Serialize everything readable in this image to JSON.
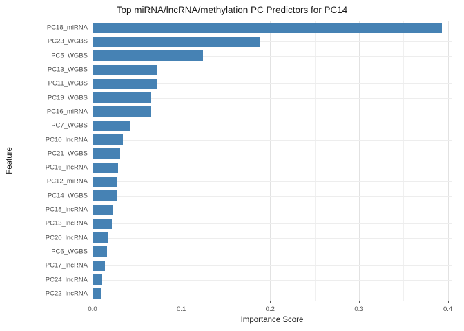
{
  "chart_data": {
    "type": "bar",
    "orientation": "horizontal",
    "title": "Top miRNA/lncRNA/methylation PC Predictors for PC14",
    "xlabel": "Importance Score",
    "ylabel": "Feature",
    "categories": [
      "PC18_miRNA",
      "PC23_WGBS",
      "PC5_WGBS",
      "PC13_WGBS",
      "PC11_WGBS",
      "PC19_WGBS",
      "PC16_miRNA",
      "PC7_WGBS",
      "PC10_lncRNA",
      "PC21_WGBS",
      "PC16_lncRNA",
      "PC12_miRNA",
      "PC14_WGBS",
      "PC18_lncRNA",
      "PC13_lncRNA",
      "PC20_lncRNA",
      "PC6_WGBS",
      "PC17_lncRNA",
      "PC24_lncRNA",
      "PC22_lncRNA"
    ],
    "values": [
      0.393,
      0.189,
      0.124,
      0.073,
      0.072,
      0.066,
      0.065,
      0.042,
      0.034,
      0.031,
      0.029,
      0.028,
      0.027,
      0.023,
      0.022,
      0.018,
      0.016,
      0.014,
      0.011,
      0.009
    ],
    "x_ticks": [
      0.0,
      0.1,
      0.2,
      0.3,
      0.4
    ],
    "x_tick_labels": [
      "0.0",
      "0.1",
      "0.2",
      "0.3",
      "0.4"
    ],
    "x_minor_ticks": [
      0.05,
      0.15,
      0.25,
      0.35
    ],
    "xlim": [
      0,
      0.405
    ],
    "grid": true,
    "legend": false,
    "colors": {
      "bar": "#4682B4",
      "grid_major": "#e2e2e2",
      "grid_minor": "#f0f0f0",
      "grid_horizontal": "#ededed",
      "tick_text": "#4d4d4d",
      "title_text": "#1a1a1a"
    }
  }
}
